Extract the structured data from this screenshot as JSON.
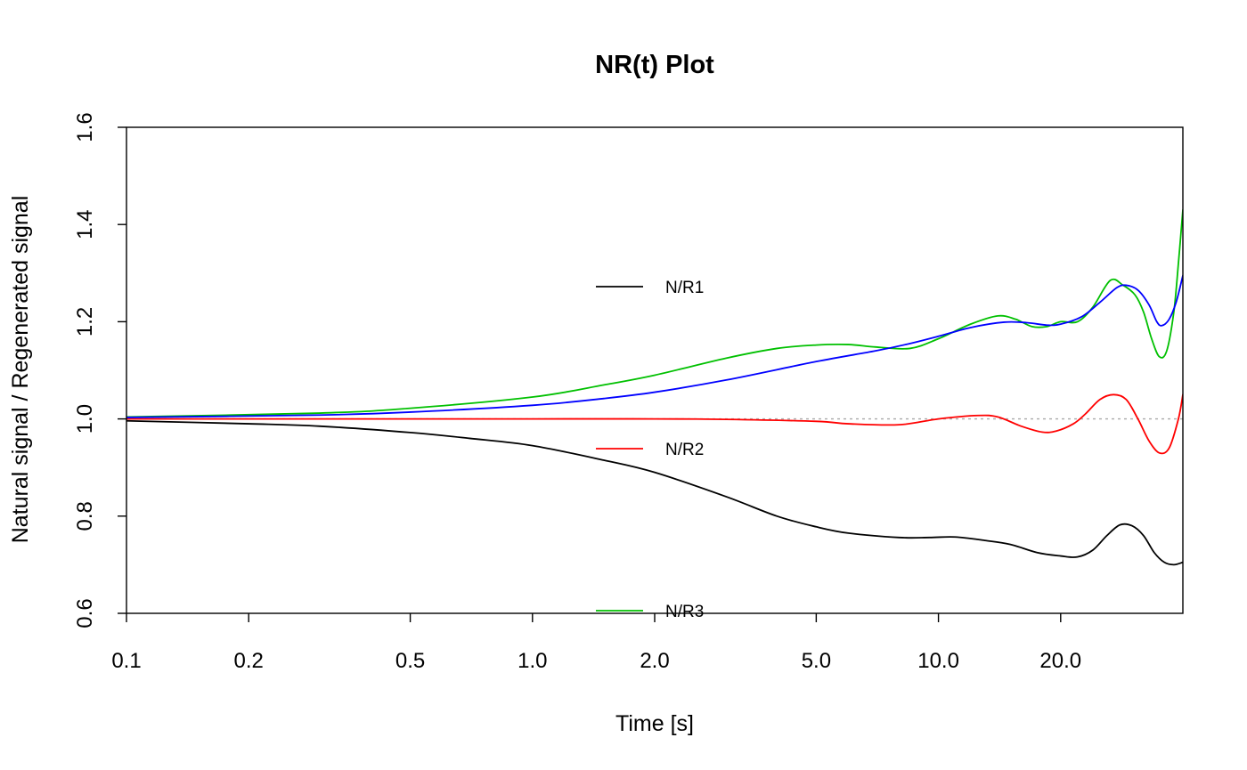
{
  "chart_data": {
    "type": "line",
    "title": "NR(t) Plot",
    "xlabel": "Time [s]",
    "ylabel": "Natural signal / Regenerated signal",
    "x_scale": "log",
    "xlim": [
      0.1,
      40
    ],
    "ylim": [
      0.6,
      1.6
    ],
    "x_ticks": [
      0.1,
      0.2,
      0.5,
      1.0,
      2.0,
      5.0,
      10.0,
      20.0
    ],
    "x_tick_labels": [
      "0.1",
      "0.2",
      "0.5",
      "1.0",
      "2.0",
      "5.0",
      "10.0",
      "20.0"
    ],
    "y_ticks": [
      0.6,
      0.8,
      1.0,
      1.2,
      1.4,
      1.6
    ],
    "y_tick_labels": [
      "0.6",
      "0.8",
      "1.0",
      "1.2",
      "1.4",
      "1.6"
    ],
    "reference_line": {
      "y": 1.0,
      "style": "dotted",
      "color": "#aaaaaa"
    },
    "grid": false,
    "legend": {
      "placement": "center",
      "boxed": false
    },
    "series": [
      {
        "name": "N/R1",
        "color": "#000000",
        "points": [
          [
            0.1,
            0.996
          ],
          [
            0.2,
            0.99
          ],
          [
            0.3,
            0.985
          ],
          [
            0.5,
            0.972
          ],
          [
            0.7,
            0.96
          ],
          [
            1.0,
            0.945
          ],
          [
            1.5,
            0.915
          ],
          [
            2.0,
            0.89
          ],
          [
            3.0,
            0.84
          ],
          [
            4.0,
            0.8
          ],
          [
            5.0,
            0.778
          ],
          [
            6.0,
            0.765
          ],
          [
            8.0,
            0.756
          ],
          [
            9.5,
            0.756
          ],
          [
            11.0,
            0.757
          ],
          [
            13.0,
            0.75
          ],
          [
            15.0,
            0.742
          ],
          [
            17.5,
            0.725
          ],
          [
            20.0,
            0.718
          ],
          [
            22.0,
            0.716
          ],
          [
            24.0,
            0.73
          ],
          [
            26.0,
            0.76
          ],
          [
            28.0,
            0.782
          ],
          [
            30.0,
            0.78
          ],
          [
            32.0,
            0.76
          ],
          [
            34.0,
            0.725
          ],
          [
            36.0,
            0.705
          ],
          [
            38.0,
            0.7
          ],
          [
            40.0,
            0.705
          ]
        ]
      },
      {
        "name": "N/R2",
        "color": "#ff0000",
        "points": [
          [
            0.1,
            1.0
          ],
          [
            1.0,
            1.0
          ],
          [
            2.0,
            1.0
          ],
          [
            3.0,
            0.999
          ],
          [
            5.0,
            0.995
          ],
          [
            6.0,
            0.99
          ],
          [
            8.0,
            0.988
          ],
          [
            10.0,
            1.0
          ],
          [
            12.5,
            1.007
          ],
          [
            14.0,
            1.004
          ],
          [
            16.0,
            0.985
          ],
          [
            18.0,
            0.973
          ],
          [
            19.5,
            0.975
          ],
          [
            21.5,
            0.99
          ],
          [
            23.0,
            1.01
          ],
          [
            25.0,
            1.04
          ],
          [
            27.0,
            1.05
          ],
          [
            29.0,
            1.04
          ],
          [
            31.0,
            1.0
          ],
          [
            33.0,
            0.955
          ],
          [
            35.0,
            0.93
          ],
          [
            37.0,
            0.94
          ],
          [
            39.0,
            1.0
          ],
          [
            40.0,
            1.05
          ]
        ]
      },
      {
        "name": "N/R3",
        "color": "#00c000",
        "points": [
          [
            0.1,
            1.004
          ],
          [
            0.3,
            1.012
          ],
          [
            0.5,
            1.022
          ],
          [
            1.0,
            1.045
          ],
          [
            1.5,
            1.07
          ],
          [
            2.0,
            1.09
          ],
          [
            3.0,
            1.125
          ],
          [
            4.0,
            1.145
          ],
          [
            5.0,
            1.152
          ],
          [
            6.0,
            1.153
          ],
          [
            7.0,
            1.148
          ],
          [
            8.5,
            1.145
          ],
          [
            10.0,
            1.165
          ],
          [
            12.0,
            1.195
          ],
          [
            14.0,
            1.212
          ],
          [
            15.5,
            1.205
          ],
          [
            17.0,
            1.19
          ],
          [
            18.5,
            1.19
          ],
          [
            20.0,
            1.2
          ],
          [
            22.0,
            1.2
          ],
          [
            24.0,
            1.23
          ],
          [
            26.5,
            1.285
          ],
          [
            28.5,
            1.275
          ],
          [
            30.5,
            1.255
          ],
          [
            32.0,
            1.22
          ],
          [
            33.5,
            1.165
          ],
          [
            35.0,
            1.128
          ],
          [
            36.5,
            1.14
          ],
          [
            38.0,
            1.22
          ],
          [
            39.0,
            1.32
          ],
          [
            40.0,
            1.43
          ]
        ]
      },
      {
        "name": "",
        "color": "#0000ff",
        "points": [
          [
            0.1,
            1.003
          ],
          [
            0.3,
            1.008
          ],
          [
            0.5,
            1.014
          ],
          [
            1.0,
            1.028
          ],
          [
            1.5,
            1.042
          ],
          [
            2.0,
            1.055
          ],
          [
            3.0,
            1.08
          ],
          [
            5.0,
            1.118
          ],
          [
            7.0,
            1.14
          ],
          [
            8.5,
            1.155
          ],
          [
            10.0,
            1.17
          ],
          [
            12.0,
            1.188
          ],
          [
            14.5,
            1.199
          ],
          [
            16.5,
            1.198
          ],
          [
            18.5,
            1.193
          ],
          [
            20.0,
            1.195
          ],
          [
            22.5,
            1.21
          ],
          [
            25.0,
            1.24
          ],
          [
            27.5,
            1.27
          ],
          [
            29.0,
            1.275
          ],
          [
            31.0,
            1.265
          ],
          [
            33.0,
            1.235
          ],
          [
            34.5,
            1.2
          ],
          [
            35.5,
            1.192
          ],
          [
            37.0,
            1.205
          ],
          [
            38.5,
            1.24
          ],
          [
            40.0,
            1.295
          ]
        ]
      }
    ]
  }
}
